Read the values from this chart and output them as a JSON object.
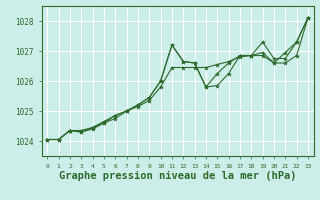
{
  "background_color": "#cceee8",
  "plot_bg_color": "#cceee8",
  "grid_color": "#ffffff",
  "line_color": "#2d6a2d",
  "xlabel": "Graphe pression niveau de la mer (hPa)",
  "xlabel_fontsize": 7.5,
  "xlim": [
    -0.5,
    23.5
  ],
  "ylim": [
    1023.5,
    1028.5
  ],
  "yticks": [
    1024,
    1025,
    1026,
    1027,
    1028
  ],
  "xticks": [
    0,
    1,
    2,
    3,
    4,
    5,
    6,
    7,
    8,
    9,
    10,
    11,
    12,
    13,
    14,
    15,
    16,
    17,
    18,
    19,
    20,
    21,
    22,
    23
  ],
  "line1_x": [
    0,
    1,
    2,
    3,
    4,
    5,
    6,
    7,
    8,
    9,
    10,
    11,
    12,
    13,
    14,
    15,
    16,
    17,
    18,
    19,
    20,
    21,
    22,
    23
  ],
  "line1_y": [
    1024.05,
    1024.05,
    1024.35,
    1024.35,
    1024.45,
    1024.65,
    1024.85,
    1025.0,
    1025.2,
    1025.45,
    1026.0,
    1027.2,
    1026.65,
    1026.6,
    1025.8,
    1025.85,
    1026.25,
    1026.85,
    1026.85,
    1026.85,
    1026.6,
    1026.6,
    1026.85,
    1028.1
  ],
  "line2_x": [
    0,
    1,
    2,
    3,
    4,
    5,
    6,
    7,
    8,
    9,
    10,
    11,
    12,
    13,
    14,
    15,
    16,
    17,
    18,
    19,
    20,
    21,
    22,
    23
  ],
  "line2_y": [
    1024.05,
    1024.05,
    1024.35,
    1024.3,
    1024.45,
    1024.6,
    1024.85,
    1025.0,
    1025.2,
    1025.45,
    1026.0,
    1027.2,
    1026.65,
    1026.6,
    1025.8,
    1026.25,
    1026.6,
    1026.85,
    1026.85,
    1027.3,
    1026.75,
    1026.75,
    1027.3,
    1028.1
  ],
  "line3_x": [
    0,
    1,
    2,
    3,
    4,
    5,
    6,
    7,
    8,
    9,
    10,
    11,
    12,
    13,
    14,
    15,
    16,
    17,
    18,
    19,
    20,
    21,
    22,
    23
  ],
  "line3_y": [
    1024.05,
    1024.05,
    1024.35,
    1024.3,
    1024.4,
    1024.6,
    1024.75,
    1025.0,
    1025.15,
    1025.35,
    1025.8,
    1026.45,
    1026.45,
    1026.45,
    1026.45,
    1026.55,
    1026.65,
    1026.8,
    1026.85,
    1026.95,
    1026.6,
    1026.95,
    1027.3,
    1028.1
  ],
  "tick_color": "#2d6a2d",
  "spine_color": "#2d6a2d"
}
